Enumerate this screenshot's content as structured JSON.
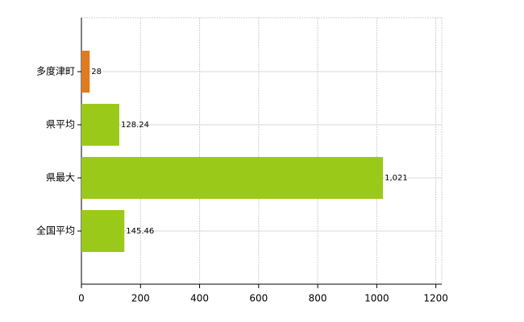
{
  "chart_data": {
    "type": "bar",
    "orientation": "horizontal",
    "categories": [
      "多度津町",
      "県平均",
      "県最大",
      "全国平均"
    ],
    "values": [
      28,
      128.24,
      1021,
      145.46
    ],
    "value_labels": [
      "28",
      "128.24",
      "1,021",
      "145.46"
    ],
    "colors": [
      "#e07a1f",
      "#9bc91a",
      "#9bc91a",
      "#9bc91a"
    ],
    "xlim": [
      0,
      1220
    ],
    "xticks": [
      0,
      200,
      400,
      600,
      800,
      1000,
      1200
    ],
    "grid": true
  }
}
